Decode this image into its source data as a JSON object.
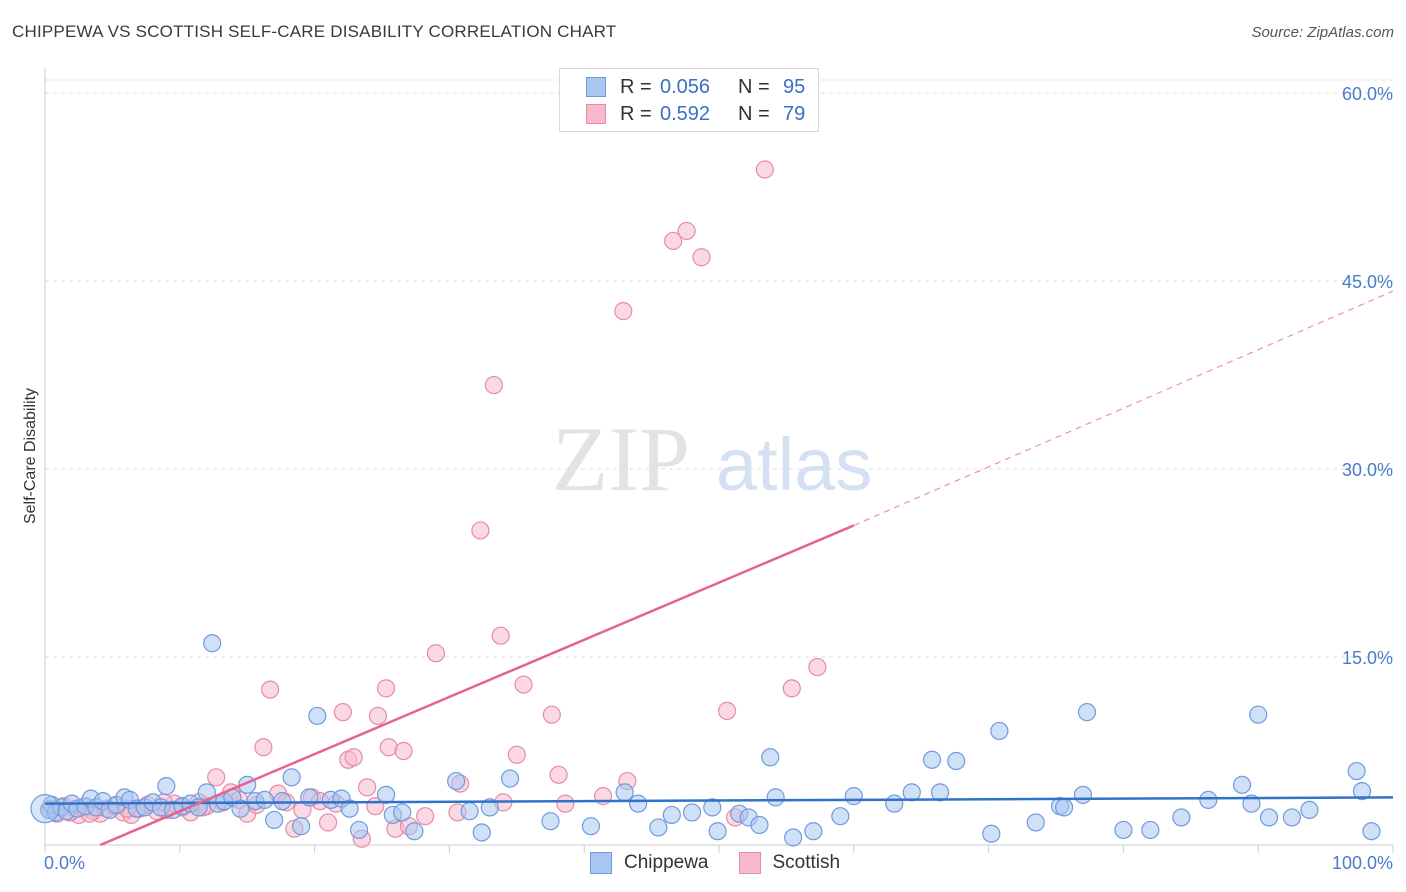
{
  "title": "CHIPPEWA VS SCOTTISH SELF-CARE DISABILITY CORRELATION CHART",
  "source": "Source: ZipAtlas.com",
  "watermark": {
    "zip": "ZIP",
    "atlas": "atlas"
  },
  "colors": {
    "chippewa_fill": "#a9c6f0",
    "chippewa_stroke": "#6f9bde",
    "chippewa_line": "#2f73c9",
    "scottish_fill": "#f7b9cc",
    "scottish_stroke": "#e88aa8",
    "scottish_line": "#e4648f",
    "tick": "#4a7cc9",
    "grid": "#dddddd"
  },
  "legend": {
    "rows": [
      {
        "r_label": "R =",
        "r_value": "0.056",
        "n_label": "N =",
        "n_value": "95"
      },
      {
        "r_label": "R =",
        "r_value": "0.592",
        "n_label": "N =",
        "n_value": "79"
      }
    ]
  },
  "bottom_legend": {
    "chippewa": "Chippewa",
    "scottish": "Scottish"
  },
  "chart_data": {
    "type": "scatter",
    "ylabel": "Self-Care Disability",
    "xlim": [
      0,
      100
    ],
    "ylim": [
      0,
      62
    ],
    "x_tick_labels": [
      "0.0%",
      "100.0%"
    ],
    "y_ticks": [
      15,
      30,
      45,
      60
    ],
    "y_tick_labels": [
      "15.0%",
      "30.0%",
      "45.0%",
      "60.0%"
    ],
    "series": [
      {
        "name": "Chippewa",
        "trend": {
          "x0": 0,
          "y0": 3.3,
          "x1": 100,
          "y1": 3.8
        },
        "points": [
          [
            0.3,
            2.8
          ],
          [
            0.5,
            3.2
          ],
          [
            0.8,
            2.6
          ],
          [
            1.2,
            3.0
          ],
          [
            1.6,
            2.7
          ],
          [
            2.0,
            3.3
          ],
          [
            2.4,
            2.9
          ],
          [
            3.0,
            3.1
          ],
          [
            3.4,
            3.7
          ],
          [
            3.8,
            3.0
          ],
          [
            4.3,
            3.5
          ],
          [
            4.8,
            2.8
          ],
          [
            5.3,
            3.2
          ],
          [
            5.9,
            3.8
          ],
          [
            6.3,
            3.6
          ],
          [
            6.8,
            2.9
          ],
          [
            7.4,
            3.0
          ],
          [
            8.0,
            3.4
          ],
          [
            8.6,
            3.0
          ],
          [
            9.0,
            4.7
          ],
          [
            9.5,
            2.8
          ],
          [
            10.2,
            3.1
          ],
          [
            10.8,
            3.3
          ],
          [
            11.4,
            3.0
          ],
          [
            12.0,
            4.2
          ],
          [
            12.4,
            16.1
          ],
          [
            12.8,
            3.3
          ],
          [
            13.3,
            3.5
          ],
          [
            13.9,
            3.8
          ],
          [
            14.5,
            2.9
          ],
          [
            15.0,
            4.8
          ],
          [
            15.6,
            3.5
          ],
          [
            16.3,
            3.6
          ],
          [
            17.0,
            2.0
          ],
          [
            17.6,
            3.5
          ],
          [
            18.3,
            5.4
          ],
          [
            19.0,
            1.5
          ],
          [
            19.6,
            3.8
          ],
          [
            20.2,
            10.3
          ],
          [
            21.2,
            3.6
          ],
          [
            22.0,
            3.7
          ],
          [
            22.6,
            2.9
          ],
          [
            23.3,
            1.2
          ],
          [
            25.3,
            4.0
          ],
          [
            25.8,
            2.4
          ],
          [
            26.5,
            2.6
          ],
          [
            27.4,
            1.1
          ],
          [
            30.5,
            5.1
          ],
          [
            31.5,
            2.7
          ],
          [
            32.4,
            1.0
          ],
          [
            33.0,
            3.0
          ],
          [
            34.5,
            5.3
          ],
          [
            37.5,
            1.9
          ],
          [
            40.5,
            1.5
          ],
          [
            43.0,
            4.2
          ],
          [
            44.0,
            3.3
          ],
          [
            45.5,
            1.4
          ],
          [
            46.5,
            2.4
          ],
          [
            48.0,
            2.6
          ],
          [
            49.5,
            3.0
          ],
          [
            49.9,
            1.1
          ],
          [
            51.5,
            2.5
          ],
          [
            52.2,
            2.2
          ],
          [
            53.0,
            1.6
          ],
          [
            53.8,
            7.0
          ],
          [
            54.2,
            3.8
          ],
          [
            55.5,
            0.6
          ],
          [
            57.0,
            1.1
          ],
          [
            59.0,
            2.3
          ],
          [
            60.0,
            3.9
          ],
          [
            63.0,
            3.3
          ],
          [
            64.3,
            4.2
          ],
          [
            65.8,
            6.8
          ],
          [
            66.4,
            4.2
          ],
          [
            67.6,
            6.7
          ],
          [
            70.2,
            0.9
          ],
          [
            70.8,
            9.1
          ],
          [
            73.5,
            1.8
          ],
          [
            75.3,
            3.1
          ],
          [
            75.6,
            3.0
          ],
          [
            77.0,
            4.0
          ],
          [
            77.3,
            10.6
          ],
          [
            80.0,
            1.2
          ],
          [
            82.0,
            1.2
          ],
          [
            84.3,
            2.2
          ],
          [
            86.3,
            3.6
          ],
          [
            88.8,
            4.8
          ],
          [
            89.5,
            3.3
          ],
          [
            90.0,
            10.4
          ],
          [
            90.8,
            2.2
          ],
          [
            92.5,
            2.2
          ],
          [
            93.8,
            2.8
          ],
          [
            97.3,
            5.9
          ],
          [
            97.7,
            4.3
          ],
          [
            98.4,
            1.1
          ]
        ]
      },
      {
        "name": "Scottish",
        "trend": {
          "x0": 4.1,
          "y0": 0,
          "x1": 60,
          "y1": 25.5,
          "dashed_to_x": 100,
          "dashed_to_y": 44.2
        },
        "points": [
          [
            0.4,
            2.9
          ],
          [
            0.9,
            2.5
          ],
          [
            1.4,
            3.1
          ],
          [
            1.9,
            2.6
          ],
          [
            2.5,
            2.4
          ],
          [
            3.1,
            3.0
          ],
          [
            3.6,
            2.7
          ],
          [
            4.1,
            2.5
          ],
          [
            4.6,
            2.9
          ],
          [
            5.2,
            3.1
          ],
          [
            5.8,
            2.6
          ],
          [
            6.4,
            2.4
          ],
          [
            7.0,
            2.9
          ],
          [
            7.6,
            3.2
          ],
          [
            8.3,
            2.7
          ],
          [
            9.0,
            2.8
          ],
          [
            9.6,
            3.3
          ],
          [
            10.2,
            3.0
          ],
          [
            10.8,
            2.6
          ],
          [
            11.4,
            3.4
          ],
          [
            12.0,
            3.1
          ],
          [
            12.7,
            5.4
          ],
          [
            13.2,
            3.4
          ],
          [
            13.8,
            4.2
          ],
          [
            14.4,
            3.6
          ],
          [
            15.0,
            2.5
          ],
          [
            15.7,
            3.2
          ],
          [
            16.2,
            7.8
          ],
          [
            16.7,
            12.4
          ],
          [
            17.3,
            4.1
          ],
          [
            17.9,
            3.4
          ],
          [
            18.5,
            1.3
          ],
          [
            19.1,
            2.8
          ],
          [
            19.8,
            3.8
          ],
          [
            20.4,
            3.5
          ],
          [
            21.0,
            1.8
          ],
          [
            21.6,
            3.3
          ],
          [
            22.1,
            10.6
          ],
          [
            22.5,
            6.8
          ],
          [
            22.9,
            7.0
          ],
          [
            23.5,
            0.5
          ],
          [
            23.9,
            4.6
          ],
          [
            24.5,
            3.1
          ],
          [
            24.7,
            10.3
          ],
          [
            25.3,
            12.5
          ],
          [
            25.5,
            7.8
          ],
          [
            26.0,
            1.3
          ],
          [
            26.6,
            7.5
          ],
          [
            27.0,
            1.5
          ],
          [
            28.2,
            2.3
          ],
          [
            29.0,
            15.3
          ],
          [
            30.6,
            2.6
          ],
          [
            30.8,
            4.9
          ],
          [
            32.3,
            25.1
          ],
          [
            33.3,
            36.7
          ],
          [
            33.8,
            16.7
          ],
          [
            34.0,
            3.4
          ],
          [
            35.0,
            7.2
          ],
          [
            35.5,
            12.8
          ],
          [
            37.6,
            10.4
          ],
          [
            38.1,
            5.6
          ],
          [
            38.6,
            3.3
          ],
          [
            41.4,
            3.9
          ],
          [
            42.9,
            42.6
          ],
          [
            43.2,
            5.1
          ],
          [
            46.6,
            48.2
          ],
          [
            47.6,
            49.0
          ],
          [
            48.7,
            46.9
          ],
          [
            50.6,
            10.7
          ],
          [
            51.2,
            2.2
          ],
          [
            53.4,
            53.9
          ],
          [
            55.4,
            12.5
          ],
          [
            57.3,
            14.2
          ],
          [
            1.8,
            2.6
          ],
          [
            2.8,
            3.0
          ],
          [
            3.3,
            2.5
          ],
          [
            6.1,
            2.9
          ],
          [
            8.8,
            3.4
          ],
          [
            11.7,
            3.0
          ]
        ]
      }
    ]
  }
}
